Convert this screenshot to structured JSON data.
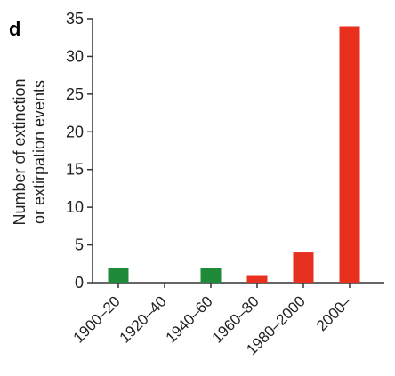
{
  "chart_data": {
    "type": "bar",
    "panel_label": "d",
    "title": "",
    "xlabel": "",
    "ylabel_lines": [
      "Number of extinction",
      "or extirpation events"
    ],
    "categories": [
      "1900–20",
      "1920–40",
      "1940–60",
      "1960–80",
      "1980–2000",
      "2000–"
    ],
    "values": [
      2,
      0,
      2,
      1,
      4,
      34
    ],
    "bar_colors": [
      "#1f8a3a",
      "#1f8a3a",
      "#1f8a3a",
      "#e8301f",
      "#e8301f",
      "#e8301f"
    ],
    "ylim": [
      0,
      35
    ],
    "yticks": [
      0,
      5,
      10,
      15,
      20,
      25,
      30,
      35
    ],
    "grid": false,
    "legend": "none"
  }
}
